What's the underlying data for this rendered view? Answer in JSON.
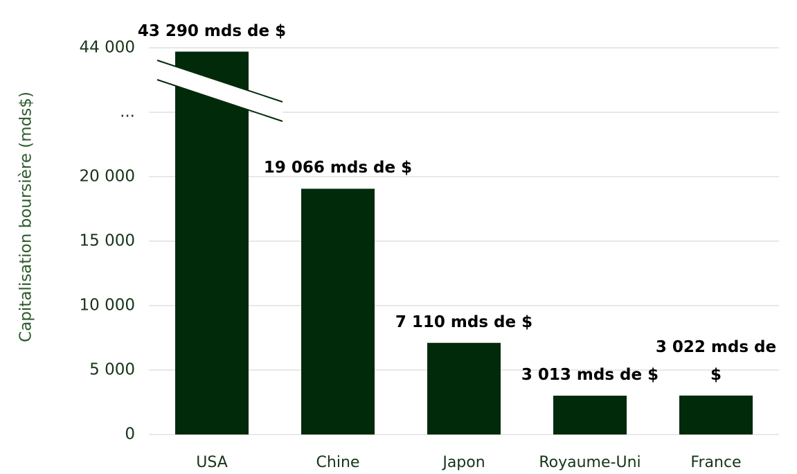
{
  "chart_data": {
    "type": "bar",
    "y_label": "Capitalisation boursière (mds$)",
    "categories": [
      "USA",
      "Chine",
      "Japon",
      "Royaume-Uni",
      "France"
    ],
    "values": [
      43290,
      19066,
      7110,
      3013,
      3022
    ],
    "value_labels": [
      "43 290 mds de $",
      "19 066 mds de $",
      "7 110 mds de $",
      "3 013 mds de $",
      "3 022 mds de $"
    ],
    "color": "#012a0a",
    "ylim": [
      0,
      44000
    ],
    "yticks": [
      0,
      {
        "value": 5000,
        "label": "5 000"
      },
      {
        "value": 10000,
        "label": "10 000"
      },
      {
        "value": 15000,
        "label": "15 000"
      },
      {
        "value": 20000,
        "label": "20 000"
      },
      {
        "value": null,
        "label": "..."
      },
      {
        "value": 44000,
        "label": "44 000"
      }
    ],
    "grid": true,
    "axis_break": true
  }
}
